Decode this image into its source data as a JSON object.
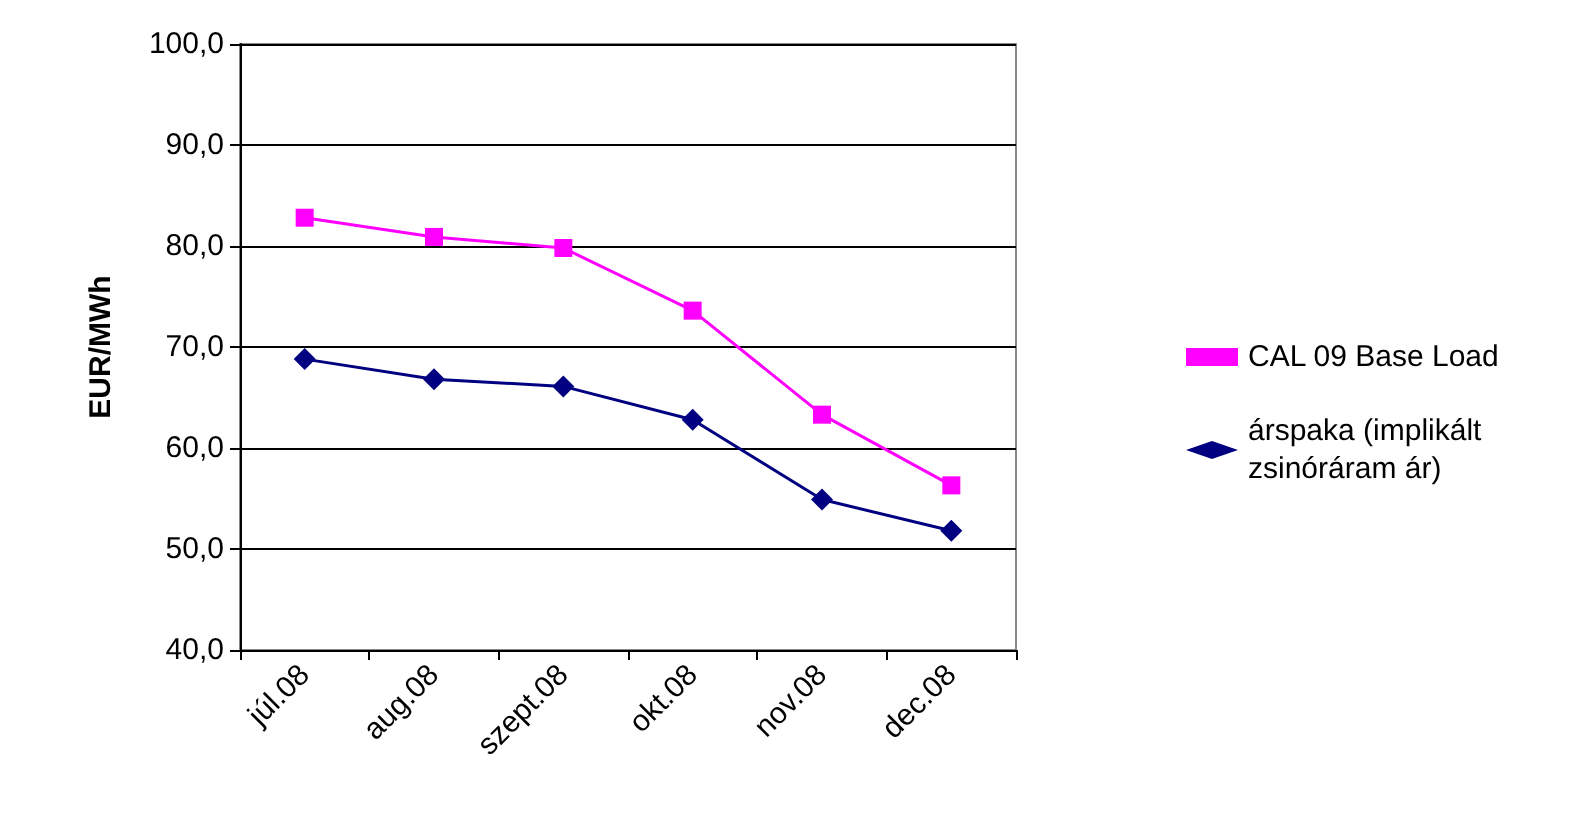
{
  "chart_data": {
    "type": "line",
    "ylabel": "EUR/MWh",
    "categories": [
      "júl.08",
      "aug.08",
      "szept.08",
      "okt.08",
      "nov.08",
      "dec.08"
    ],
    "series": [
      {
        "name": "CAL 09 Base Load",
        "color": "#ff00ff",
        "marker": "square",
        "values": [
          82.8,
          80.9,
          79.8,
          73.6,
          63.3,
          56.3
        ]
      },
      {
        "name": "árspaka (implikált zsinóráram ár)",
        "color": "#000080",
        "marker": "diamond",
        "values": [
          68.8,
          66.8,
          66.1,
          62.8,
          54.9,
          51.8
        ]
      }
    ],
    "ylim": [
      40,
      100
    ],
    "yticks": [
      {
        "value": 40,
        "label": "40,0"
      },
      {
        "value": 50,
        "label": "50,0"
      },
      {
        "value": 60,
        "label": "60,0"
      },
      {
        "value": 70,
        "label": "70,0"
      },
      {
        "value": 80,
        "label": "80,0"
      },
      {
        "value": 90,
        "label": "90,0"
      },
      {
        "value": 100,
        "label": "100,0"
      }
    ],
    "grid": "y",
    "legend": "right",
    "line_style": "solid"
  }
}
